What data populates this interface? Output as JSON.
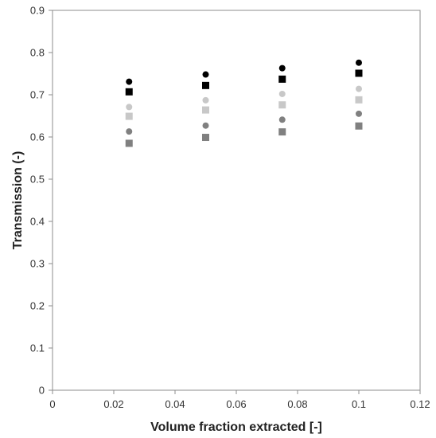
{
  "chart_data": {
    "type": "scatter",
    "xlabel": "Volume fraction extracted [-]",
    "ylabel": "Transmission (-)",
    "xlim": [
      0,
      0.12
    ],
    "ylim": [
      0,
      0.9
    ],
    "x_ticks": [
      "0",
      "0.02",
      "0.04",
      "0.06",
      "0.08",
      "0.1",
      "0.12"
    ],
    "y_ticks": [
      "0",
      "0.1",
      "0.2",
      "0.3",
      "0.4",
      "0.5",
      "0.6",
      "0.7",
      "0.8",
      "0.9"
    ],
    "grid": false,
    "legend": "none",
    "series": [
      {
        "marker": "circle",
        "color": "#000000",
        "x": [
          0.025,
          0.05,
          0.075,
          0.1
        ],
        "y": [
          0.731,
          0.748,
          0.763,
          0.776
        ]
      },
      {
        "marker": "square",
        "color": "#000000",
        "x": [
          0.025,
          0.05,
          0.075,
          0.1
        ],
        "y": [
          0.707,
          0.722,
          0.737,
          0.751
        ]
      },
      {
        "marker": "circle",
        "color": "#c8c8c8",
        "x": [
          0.025,
          0.05,
          0.075,
          0.1
        ],
        "y": [
          0.671,
          0.687,
          0.702,
          0.714
        ]
      },
      {
        "marker": "square",
        "color": "#c8c8c8",
        "x": [
          0.025,
          0.05,
          0.075,
          0.1
        ],
        "y": [
          0.649,
          0.664,
          0.676,
          0.688
        ]
      },
      {
        "marker": "circle",
        "color": "#808080",
        "x": [
          0.025,
          0.05,
          0.075,
          0.1
        ],
        "y": [
          0.613,
          0.627,
          0.641,
          0.655
        ]
      },
      {
        "marker": "square",
        "color": "#808080",
        "x": [
          0.025,
          0.05,
          0.075,
          0.1
        ],
        "y": [
          0.585,
          0.599,
          0.612,
          0.626
        ]
      }
    ]
  }
}
